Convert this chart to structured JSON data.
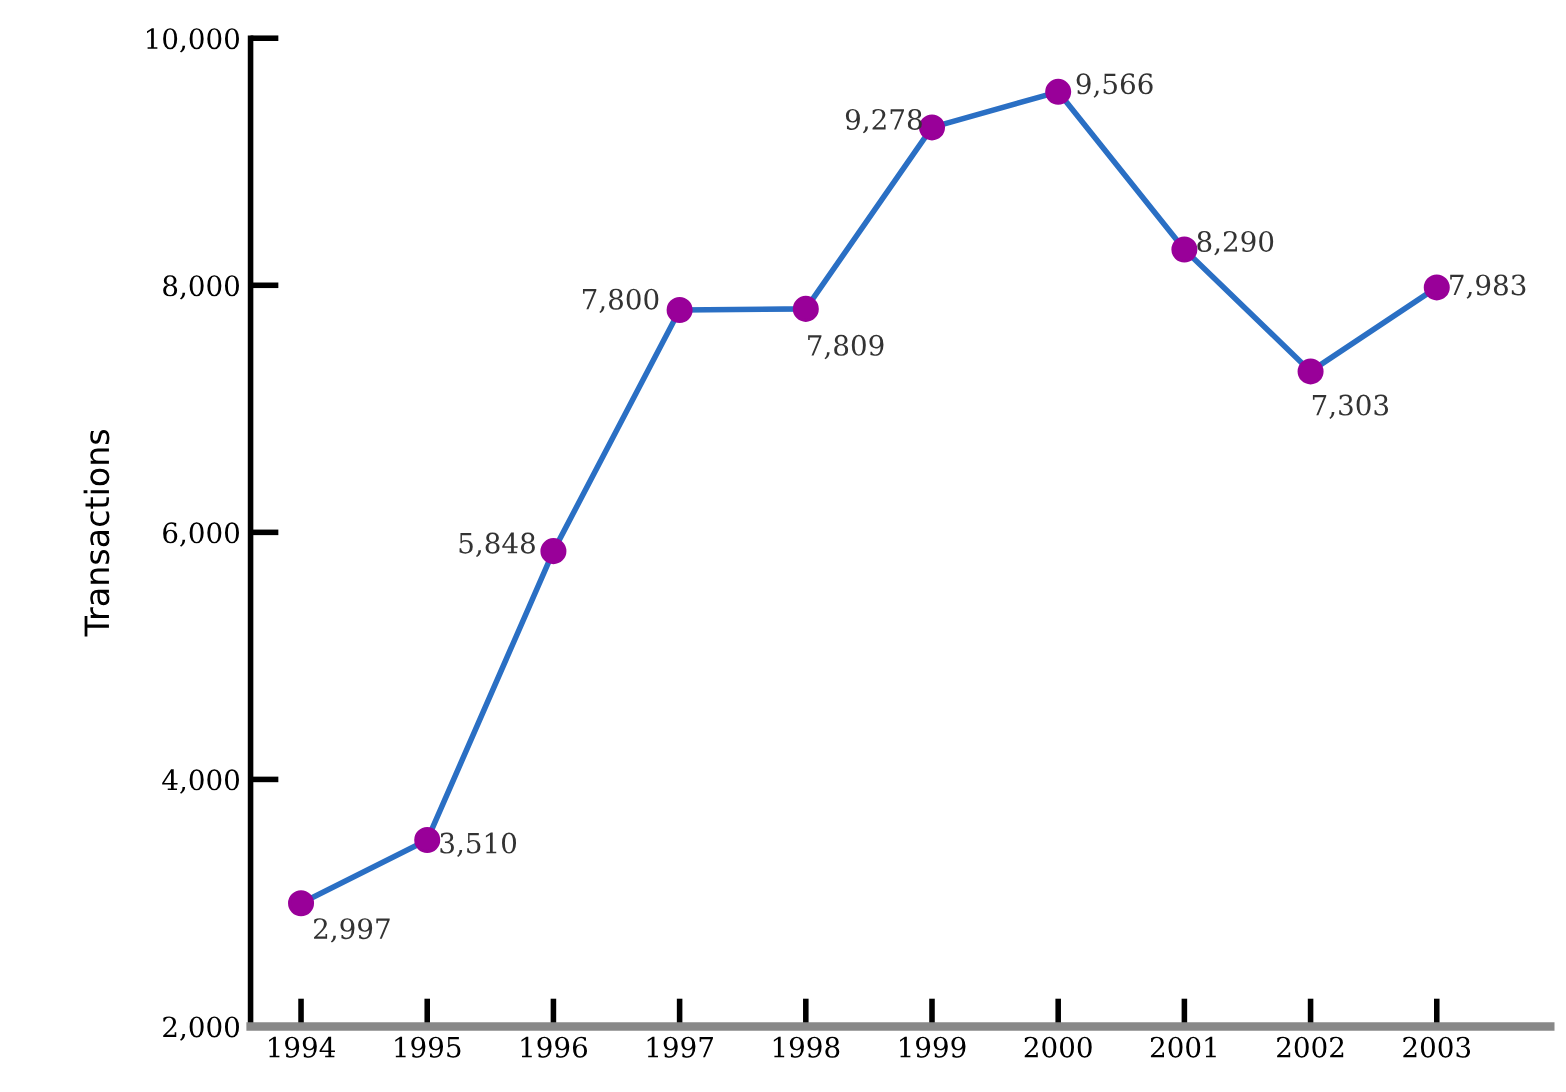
{
  "chart_data": {
    "type": "line",
    "ylabel": "Transactions",
    "categories": [
      "1994",
      "1995",
      "1996",
      "1997",
      "1998",
      "1999",
      "2000",
      "2001",
      "2002",
      "2003"
    ],
    "series": [
      {
        "color": "#2a6fc4",
        "colors": [
          "#990099",
          "#990099",
          "#990099",
          "#990099",
          "#990099",
          "#990099",
          "#990099",
          "#990099",
          "#990099",
          "#990099"
        ],
        "values": [
          2997,
          3510,
          5848,
          7800,
          7809,
          9278,
          9566,
          8290,
          7303,
          7983
        ],
        "value_labels": [
          "2,997",
          "3,510",
          "5,848",
          "7,800",
          "7,809",
          "9,278",
          "9,566",
          "8,290",
          "7,303",
          "7,983"
        ]
      }
    ],
    "marker": "circle",
    "line_style": "solid",
    "ylim": [
      2000,
      10000
    ],
    "yticks": [
      {
        "value": 2000,
        "label": "2,000"
      },
      {
        "value": 4000,
        "label": "4,000"
      },
      {
        "value": 6000,
        "label": "6,000"
      },
      {
        "value": 8000,
        "label": "8,000"
      },
      {
        "value": 10000,
        "label": "10,000"
      }
    ],
    "grid": false,
    "legend": false
  }
}
